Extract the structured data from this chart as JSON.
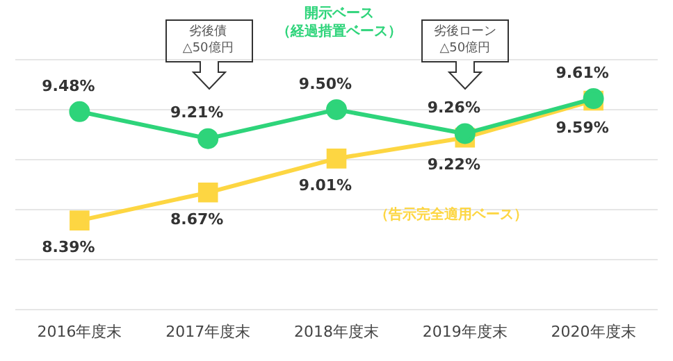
{
  "chart_data": {
    "type": "line",
    "categories": [
      "2016年度末",
      "2017年度末",
      "2018年度末",
      "2019年度末",
      "2020年度末"
    ],
    "series": [
      {
        "name": "開示ベース（経過措置ベース）",
        "color": "#2ed47a",
        "marker": "circle",
        "values": [
          9.48,
          9.21,
          9.5,
          9.26,
          9.61
        ],
        "value_labels": [
          "9.48%",
          "9.21%",
          "9.50%",
          "9.26%",
          "9.61%"
        ]
      },
      {
        "name": "（告示完全適用ベース）",
        "color": "#fdd642",
        "marker": "square",
        "values": [
          8.39,
          8.67,
          9.01,
          9.22,
          9.59
        ],
        "value_labels": [
          "8.39%",
          "8.67%",
          "9.01%",
          "9.22%",
          "9.59%"
        ]
      }
    ],
    "ylim": [
      7.5,
      10.0
    ],
    "yticks": [
      {
        "value": 7.5,
        "label": null
      },
      {
        "value": 8.0,
        "label": null
      },
      {
        "value": 8.5,
        "label": null
      },
      {
        "value": 9.0,
        "label": null
      },
      {
        "value": 9.5,
        "label": null
      },
      {
        "value": 10.0,
        "label": null
      }
    ],
    "tick_labels": "x",
    "grid": "y",
    "legend": false,
    "annotations": [
      "劣後債\n△50億円",
      "劣後ローン\n△50億円"
    ]
  }
}
